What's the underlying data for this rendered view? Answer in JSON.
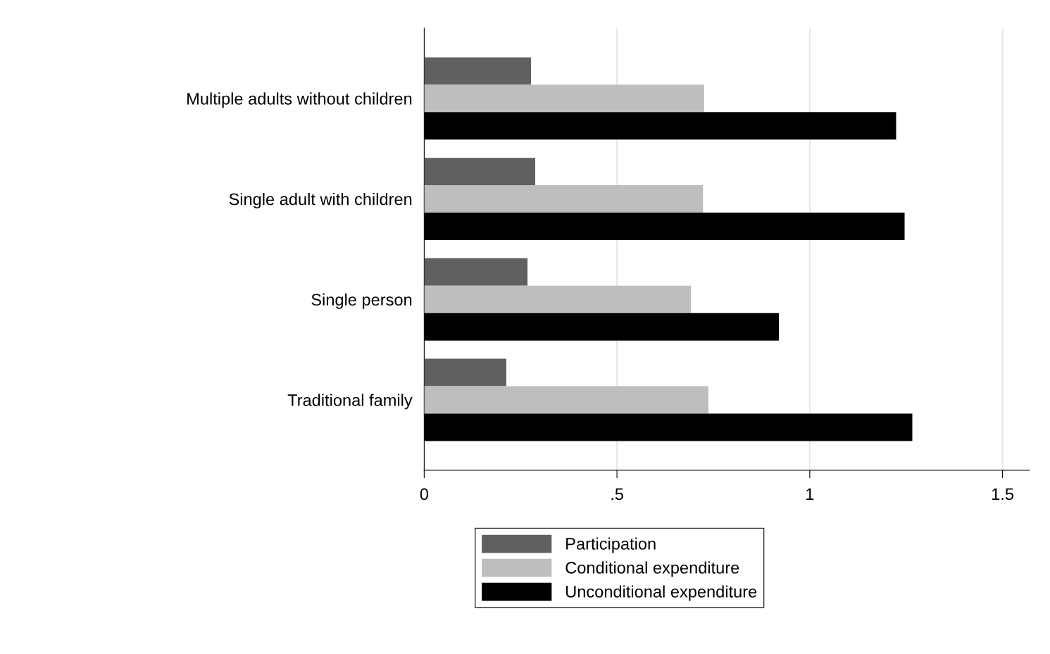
{
  "chart_data": {
    "type": "bar",
    "orientation": "horizontal",
    "categories": [
      "Multiple adults without children",
      "Single adult with children",
      "Single person",
      "Traditional family"
    ],
    "series": [
      {
        "name": "Participation",
        "color": "#606060",
        "values": [
          0.277,
          0.288,
          0.268,
          0.213
        ]
      },
      {
        "name": "Conditional expenditure",
        "color": "#bebebe",
        "values": [
          0.726,
          0.723,
          0.692,
          0.737
        ]
      },
      {
        "name": "Unconditional expenditure",
        "color": "#000000",
        "values": [
          1.224,
          1.246,
          0.92,
          1.266
        ]
      }
    ],
    "xlim": [
      0,
      1.57
    ],
    "xticks": [
      0,
      {
        "value": 0.5,
        "label": ".5"
      },
      1,
      1.5
    ],
    "grid": "x",
    "legend": "bottom"
  }
}
